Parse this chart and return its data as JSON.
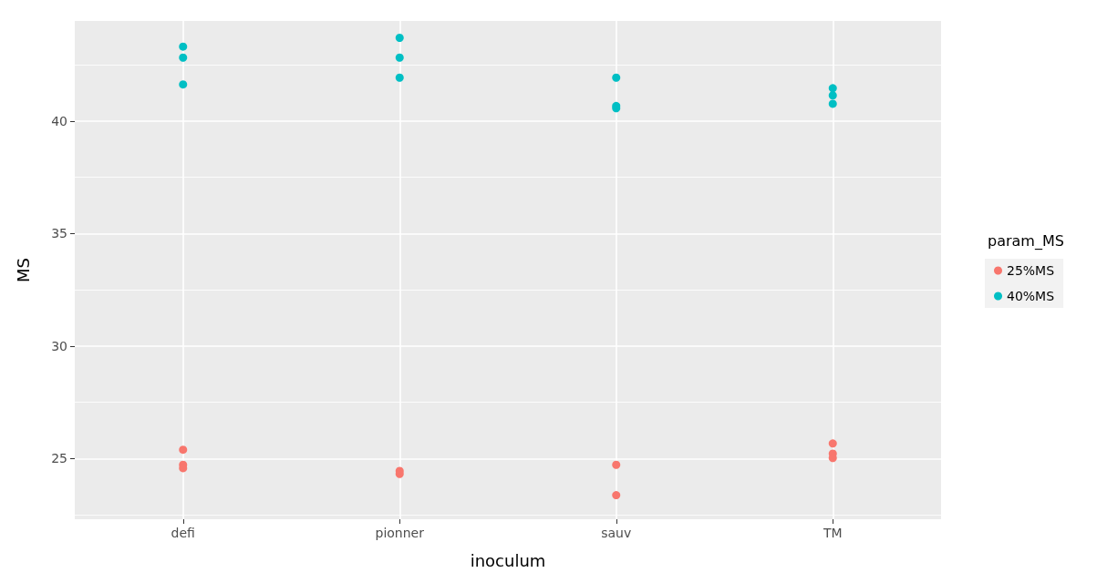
{
  "chart_data": {
    "type": "scatter",
    "xlabel": "inoculum",
    "ylabel": "MS",
    "legend_title": "param_MS",
    "categories": [
      "defi",
      "pionner",
      "sauv",
      "TM"
    ],
    "series": [
      {
        "name": "25%MS",
        "color": "#f8766d",
        "x": [
          "defi",
          "defi",
          "defi",
          "pionner",
          "pionner",
          "sauv",
          "sauv",
          "TM",
          "TM",
          "TM"
        ],
        "values": [
          25.39,
          24.72,
          24.57,
          24.45,
          24.31,
          24.72,
          23.37,
          25.67,
          25.22,
          25.02
        ]
      },
      {
        "name": "40%MS",
        "color": "#00bfc4",
        "x": [
          "defi",
          "defi",
          "defi",
          "pionner",
          "pionner",
          "pionner",
          "sauv",
          "sauv",
          "sauv",
          "TM",
          "TM",
          "TM"
        ],
        "values": [
          43.31,
          42.82,
          41.63,
          43.7,
          42.82,
          41.93,
          41.93,
          40.67,
          40.57,
          41.46,
          41.14,
          40.77
        ]
      }
    ],
    "ylim": [
      22.3,
      44.45
    ],
    "yticks": [
      25,
      30,
      35,
      40
    ],
    "grid": true,
    "legend": "right",
    "marker": "circle"
  }
}
